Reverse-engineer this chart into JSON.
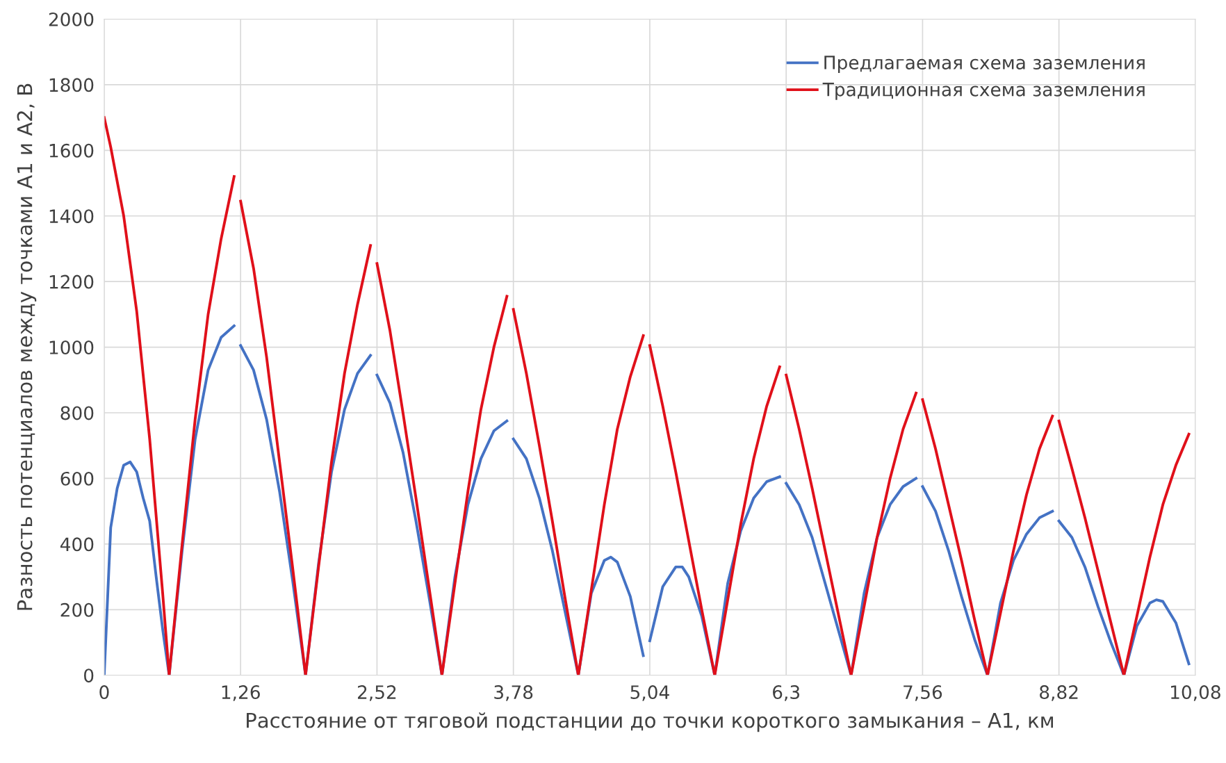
{
  "chart_data": {
    "type": "line",
    "xlabel": "Расстояние от тяговой подстанции до точки короткого замыкания – A1, км",
    "ylabel": "Разность потенциалов между точками A1 и A2, В",
    "xlim": [
      0,
      10.08
    ],
    "xticks": [
      0,
      {
        "value": 1.26,
        "label": "1,26"
      },
      {
        "value": 2.52,
        "label": "2,52"
      },
      {
        "value": 3.78,
        "label": "3,78"
      },
      {
        "value": 5.04,
        "label": "5,04"
      },
      {
        "value": 6.3,
        "label": "6,3"
      },
      {
        "value": 7.56,
        "label": "7,56"
      },
      {
        "value": 8.82,
        "label": "8,82"
      },
      {
        "value": 10.08,
        "label": "10,08"
      }
    ],
    "ylim": [
      0,
      2000
    ],
    "yticks": [
      0,
      200,
      400,
      600,
      800,
      1000,
      1200,
      1400,
      1600,
      1800,
      2000
    ],
    "grid": true,
    "legend": "top right",
    "marker": "none",
    "line_style": "solid",
    "series": [
      {
        "name": "Предлагаемая схема заземления",
        "color": "#4472c4",
        "x": [
          0,
          0.06,
          0.12,
          0.18,
          0.24,
          0.3,
          0.36,
          0.42,
          0.48,
          0.54,
          0.6,
          0.72,
          0.84,
          0.96,
          1.08,
          1.2,
          1.23,
          1.26,
          1.38,
          1.5,
          1.62,
          1.74,
          1.86,
          1.98,
          2.1,
          2.22,
          2.34,
          2.46,
          2.49,
          2.52,
          2.64,
          2.76,
          2.88,
          3.0,
          3.12,
          3.24,
          3.36,
          3.48,
          3.6,
          3.72,
          3.75,
          3.78,
          3.9,
          4.02,
          4.14,
          4.26,
          4.38,
          4.5,
          4.62,
          4.68,
          4.74,
          4.86,
          4.98,
          5.01,
          5.04,
          5.16,
          5.28,
          5.34,
          5.4,
          5.52,
          5.64,
          5.76,
          5.88,
          6.0,
          6.12,
          6.24,
          6.27,
          6.3,
          6.42,
          6.54,
          6.66,
          6.78,
          6.9,
          7.02,
          7.14,
          7.26,
          7.38,
          7.5,
          7.53,
          7.56,
          7.68,
          7.8,
          7.92,
          8.04,
          8.16,
          8.28,
          8.4,
          8.52,
          8.64,
          8.76,
          8.79,
          8.82,
          8.94,
          9.06,
          9.18,
          9.3,
          9.42,
          9.54,
          9.66,
          9.72,
          9.78,
          9.9,
          10.02
        ],
        "values": [
          0,
          450,
          570,
          640,
          650,
          620,
          540,
          470,
          300,
          140,
          0,
          380,
          720,
          930,
          1030,
          1065,
          null,
          1005,
          930,
          780,
          560,
          290,
          0,
          340,
          620,
          810,
          920,
          975,
          null,
          915,
          830,
          680,
          470,
          240,
          0,
          300,
          520,
          660,
          745,
          775,
          null,
          720,
          660,
          540,
          380,
          190,
          0,
          250,
          350,
          360,
          345,
          240,
          60,
          null,
          105,
          270,
          330,
          330,
          300,
          180,
          0,
          280,
          440,
          540,
          590,
          605,
          null,
          585,
          520,
          420,
          280,
          140,
          0,
          250,
          420,
          520,
          575,
          600,
          null,
          575,
          500,
          380,
          240,
          110,
          0,
          220,
          350,
          430,
          480,
          500,
          null,
          470,
          420,
          330,
          210,
          100,
          0,
          150,
          220,
          230,
          225,
          160,
          35
        ]
      },
      {
        "name": "Традиционная схема заземления",
        "color": "#e0101a",
        "x": [
          0,
          0.06,
          0.18,
          0.3,
          0.42,
          0.54,
          0.6,
          0.72,
          0.84,
          0.96,
          1.08,
          1.2,
          1.23,
          1.26,
          1.38,
          1.5,
          1.62,
          1.74,
          1.86,
          1.98,
          2.1,
          2.22,
          2.34,
          2.46,
          2.49,
          2.52,
          2.64,
          2.76,
          2.88,
          3.0,
          3.12,
          3.24,
          3.36,
          3.48,
          3.6,
          3.72,
          3.75,
          3.78,
          3.9,
          4.02,
          4.14,
          4.26,
          4.38,
          4.5,
          4.62,
          4.74,
          4.86,
          4.98,
          5.01,
          5.04,
          5.16,
          5.28,
          5.4,
          5.52,
          5.64,
          5.76,
          5.88,
          6.0,
          6.12,
          6.24,
          6.27,
          6.3,
          6.42,
          6.54,
          6.66,
          6.78,
          6.9,
          7.02,
          7.14,
          7.26,
          7.38,
          7.5,
          7.53,
          7.56,
          7.68,
          7.8,
          7.92,
          8.04,
          8.16,
          8.28,
          8.4,
          8.52,
          8.64,
          8.76,
          8.79,
          8.82,
          8.94,
          9.06,
          9.18,
          9.3,
          9.42,
          9.54,
          9.66,
          9.78,
          9.9,
          10.02
        ],
        "values": [
          1700,
          1610,
          1400,
          1110,
          720,
          250,
          0,
          400,
          780,
          1100,
          1330,
          1520,
          null,
          1445,
          1240,
          970,
          650,
          330,
          0,
          330,
          650,
          920,
          1130,
          1310,
          null,
          1255,
          1050,
          800,
          540,
          270,
          0,
          280,
          560,
          810,
          1000,
          1155,
          null,
          1115,
          920,
          700,
          470,
          230,
          0,
          260,
          520,
          750,
          910,
          1035,
          null,
          1005,
          820,
          620,
          410,
          200,
          0,
          230,
          460,
          660,
          820,
          940,
          null,
          915,
          750,
          570,
          380,
          190,
          0,
          210,
          420,
          600,
          750,
          860,
          null,
          840,
          690,
          520,
          350,
          170,
          0,
          190,
          380,
          550,
          690,
          790,
          null,
          775,
          630,
          480,
          320,
          160,
          0,
          180,
          360,
          520,
          640,
          735
        ]
      }
    ]
  }
}
